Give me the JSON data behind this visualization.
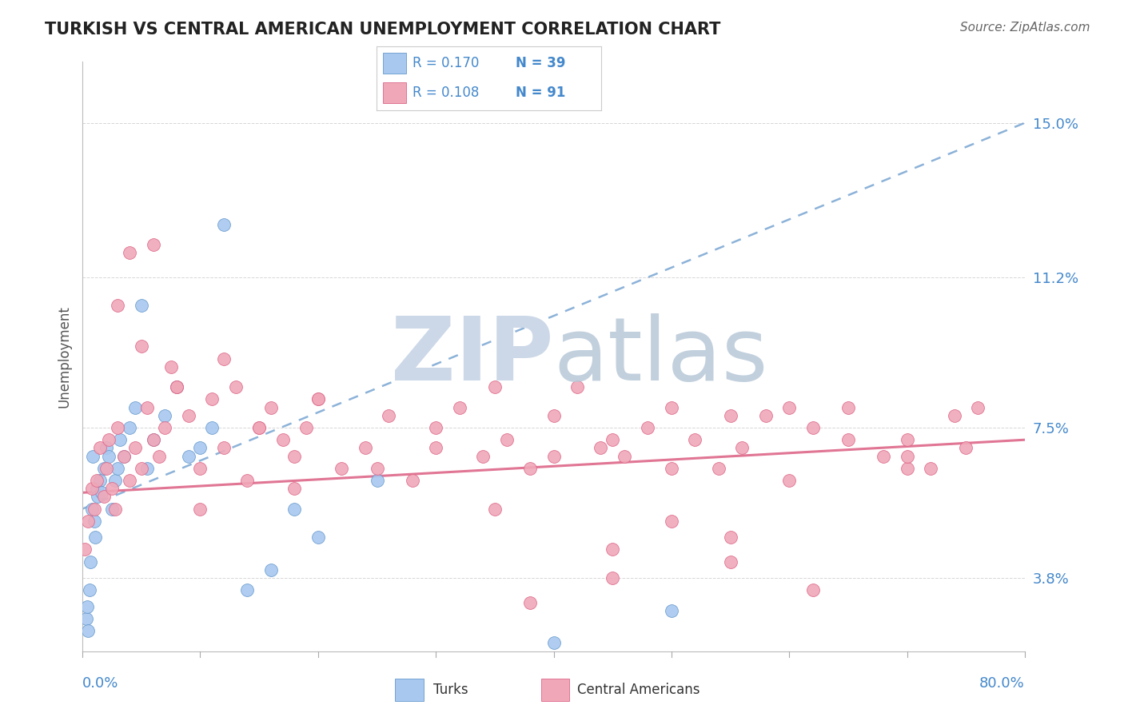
{
  "title": "TURKISH VS CENTRAL AMERICAN UNEMPLOYMENT CORRELATION CHART",
  "source": "Source: ZipAtlas.com",
  "ylabel": "Unemployment",
  "yticks": [
    3.8,
    7.5,
    11.2,
    15.0
  ],
  "xlim": [
    0.0,
    80.0
  ],
  "ylim": [
    2.0,
    16.5
  ],
  "legend_r_turks": "R = 0.170",
  "legend_n_turks": "N = 39",
  "legend_r_central": "R = 0.108",
  "legend_n_central": "N = 91",
  "color_turks_fill": "#a8c8f0",
  "color_central_fill": "#f0a8b8",
  "color_turks_edge": "#6699cc",
  "color_central_edge": "#dd6688",
  "color_blue_text": "#4488cc",
  "color_trend_turks": "#6699cc",
  "color_trend_central": "#dd6688",
  "watermark_zip_color": "#ccd8e8",
  "watermark_atlas_color": "#b8c8d8",
  "background_color": "#ffffff",
  "turks_trend_x0": 0.0,
  "turks_trend_y0": 5.5,
  "turks_trend_x1": 80.0,
  "turks_trend_y1": 15.0,
  "central_trend_x0": 0.0,
  "central_trend_y0": 5.9,
  "central_trend_x1": 80.0,
  "central_trend_y1": 7.2,
  "turks_x": [
    0.3,
    0.4,
    0.5,
    0.6,
    0.7,
    0.8,
    0.9,
    1.0,
    1.1,
    1.2,
    1.3,
    1.5,
    1.6,
    1.8,
    2.0,
    2.2,
    2.5,
    2.8,
    3.0,
    3.2,
    3.5,
    4.0,
    4.5,
    5.0,
    5.5,
    6.0,
    7.0,
    8.0,
    9.0,
    10.0,
    11.0,
    12.0,
    14.0,
    16.0,
    18.0,
    20.0,
    25.0,
    40.0,
    50.0
  ],
  "turks_y": [
    2.8,
    3.1,
    2.5,
    3.5,
    4.2,
    5.5,
    6.8,
    5.2,
    4.8,
    6.0,
    5.8,
    6.2,
    5.9,
    6.5,
    7.0,
    6.8,
    5.5,
    6.2,
    6.5,
    7.2,
    6.8,
    7.5,
    8.0,
    10.5,
    6.5,
    7.2,
    7.8,
    8.5,
    6.8,
    7.0,
    7.5,
    12.5,
    3.5,
    4.0,
    5.5,
    4.8,
    6.2,
    2.2,
    3.0
  ],
  "central_x": [
    0.2,
    0.5,
    0.8,
    1.0,
    1.2,
    1.5,
    1.8,
    2.0,
    2.2,
    2.5,
    2.8,
    3.0,
    3.5,
    4.0,
    4.5,
    5.0,
    5.5,
    6.0,
    6.5,
    7.0,
    7.5,
    8.0,
    9.0,
    10.0,
    11.0,
    12.0,
    13.0,
    14.0,
    15.0,
    16.0,
    17.0,
    18.0,
    19.0,
    20.0,
    22.0,
    24.0,
    26.0,
    28.0,
    30.0,
    32.0,
    34.0,
    36.0,
    38.0,
    40.0,
    42.0,
    44.0,
    46.0,
    48.0,
    50.0,
    52.0,
    54.0,
    56.0,
    58.0,
    60.0,
    62.0,
    65.0,
    68.0,
    70.0,
    72.0,
    74.0,
    76.0,
    3.0,
    4.0,
    5.0,
    6.0,
    8.0,
    10.0,
    12.0,
    15.0,
    18.0,
    20.0,
    25.0,
    30.0,
    35.0,
    40.0,
    45.0,
    50.0,
    55.0,
    60.0,
    65.0,
    70.0,
    75.0,
    38.0,
    45.0,
    55.0,
    62.0,
    70.0,
    35.0,
    45.0,
    50.0,
    55.0
  ],
  "central_y": [
    4.5,
    5.2,
    6.0,
    5.5,
    6.2,
    7.0,
    5.8,
    6.5,
    7.2,
    6.0,
    5.5,
    7.5,
    6.8,
    6.2,
    7.0,
    6.5,
    8.0,
    7.2,
    6.8,
    7.5,
    9.0,
    8.5,
    7.8,
    6.5,
    8.2,
    7.0,
    8.5,
    6.2,
    7.5,
    8.0,
    7.2,
    6.8,
    7.5,
    8.2,
    6.5,
    7.0,
    7.8,
    6.2,
    7.5,
    8.0,
    6.8,
    7.2,
    6.5,
    7.8,
    8.5,
    7.0,
    6.8,
    7.5,
    8.0,
    7.2,
    6.5,
    7.0,
    7.8,
    6.2,
    7.5,
    8.0,
    6.8,
    7.2,
    6.5,
    7.8,
    8.0,
    10.5,
    11.8,
    9.5,
    12.0,
    8.5,
    5.5,
    9.2,
    7.5,
    6.0,
    8.2,
    6.5,
    7.0,
    8.5,
    6.8,
    7.2,
    6.5,
    7.8,
    8.0,
    7.2,
    6.5,
    7.0,
    3.2,
    3.8,
    4.2,
    3.5,
    6.8,
    5.5,
    4.5,
    5.2,
    4.8
  ]
}
